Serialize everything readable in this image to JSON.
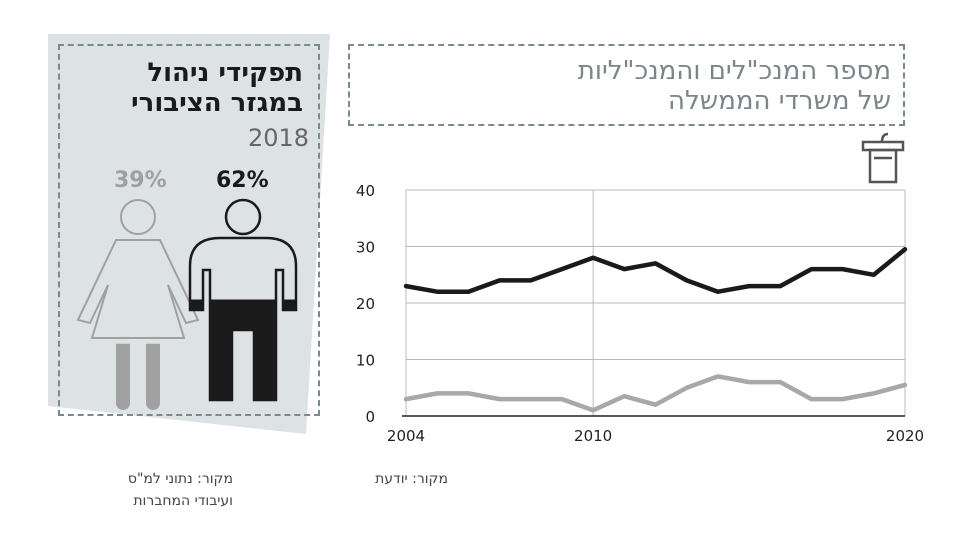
{
  "panel": {
    "title_line1": "תפקידי ניהול",
    "title_line2": "במגזר הציבורי",
    "year": "2018",
    "women_pct": "39%",
    "men_pct": "62%",
    "women_fill": 0.39,
    "men_fill": 0.62,
    "colors": {
      "women": "#a0a0a0",
      "men": "#1a1a1a",
      "panel_bg": "#dde2e4"
    }
  },
  "header": {
    "title_line1": "מספר המנכ\"לים והמנכ\"ליות",
    "title_line2": "של משרדי הממשלה"
  },
  "sources": {
    "left_line1": "מקור: נתוני למ\"ס",
    "left_line2": "ועיבודי המחברות",
    "right": "מקור: יודעת"
  },
  "icons": {
    "podium": "podium-icon",
    "woman": "woman-icon",
    "man": "man-icon"
  },
  "chart_data": {
    "type": "line",
    "x": [
      2004,
      2005,
      2006,
      2007,
      2008,
      2009,
      2010,
      2011,
      2012,
      2013,
      2014,
      2015,
      2016,
      2017,
      2018,
      2019,
      2020
    ],
    "xticks": [
      "2004",
      "2010",
      "2020"
    ],
    "yticks": [
      "0",
      "10",
      "20",
      "30",
      "40"
    ],
    "ylim": [
      0,
      40
    ],
    "grid": true,
    "series": [
      {
        "color": "#1a1a1a",
        "values": [
          23,
          22,
          22,
          24,
          24,
          26,
          28,
          26,
          27,
          24,
          22,
          23,
          23,
          26,
          26,
          25,
          29.5
        ]
      },
      {
        "color": "#a8a8a8",
        "values": [
          3,
          4,
          4,
          3,
          3,
          3,
          1,
          3.5,
          2,
          5,
          7,
          6,
          6,
          3,
          3,
          4,
          5.5
        ]
      }
    ]
  }
}
